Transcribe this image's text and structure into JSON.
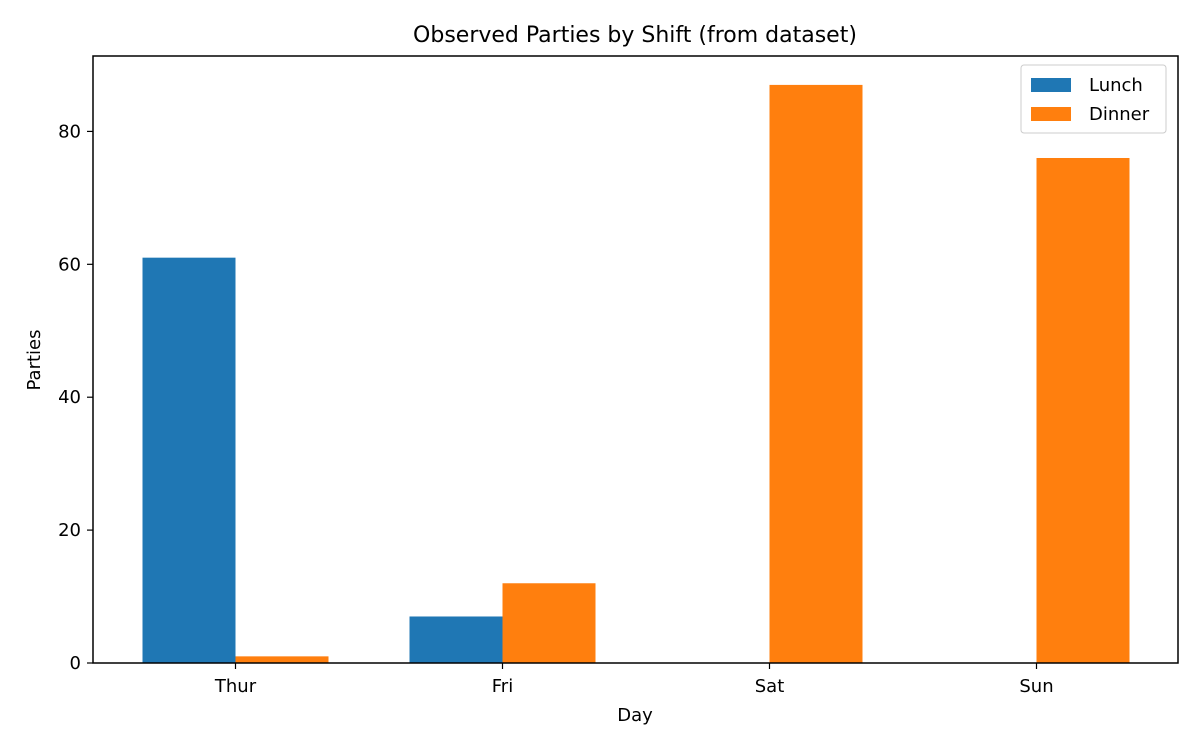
{
  "chart_data": {
    "type": "bar",
    "title": "Observed Parties by Shift (from dataset)",
    "xlabel": "Day",
    "ylabel": "Parties",
    "categories": [
      "Thur",
      "Fri",
      "Sat",
      "Sun"
    ],
    "series": [
      {
        "name": "Lunch",
        "values": [
          61,
          7,
          0,
          0
        ],
        "color": "#1f77b4"
      },
      {
        "name": "Dinner",
        "values": [
          1,
          12,
          87,
          76
        ],
        "color": "#ff7f0e"
      }
    ],
    "ylim": [
      0,
      91.35
    ],
    "yticks": [
      0,
      20,
      40,
      60,
      80
    ],
    "grid": false,
    "legend_position": "top-right"
  }
}
